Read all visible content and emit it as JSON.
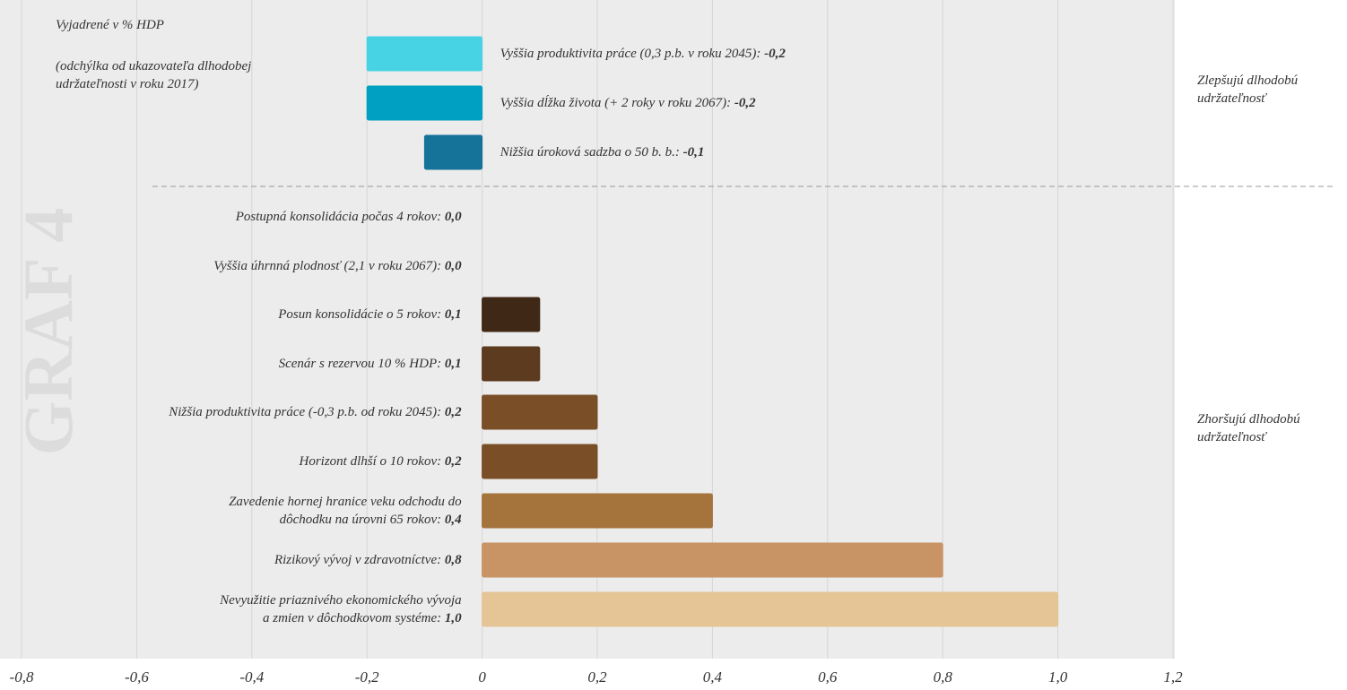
{
  "chart_data": {
    "type": "bar",
    "orientation": "horizontal",
    "title": "GRAF 4",
    "subtitle": "Vyjadrené v % HDP",
    "note": "(odchýlka od ukazovateľa dlhodobej\nudržateľnosti v roku 2017)",
    "annotations": [
      "Zlepšujú dlhodobú\nudržateľnosť",
      "Zhoršujú dlhodobú\nudržateľnosť"
    ],
    "categories": [
      "Vyššia produktivita práce (0,3 p.b. v roku 2045):",
      "Vyššia dĺžka života (+ 2 roky v roku 2067):",
      "Nižšia úroková sadzba o 50 b. b.:",
      "Postupná konsolidácia počas 4 rokov:",
      "Vyššia úhrnná plodnosť (2,1 v roku 2067):",
      "Posun konsolidácie o 5 rokov:",
      "Scenár s rezervou 10 % HDP:",
      "Nižšia produktivita práce (-0,3 p.b. od roku 2045):",
      "Horizont dlhší o 10 rokov:",
      "Zavedenie hornej hranice veku odchodu do\ndôchodku na úrovni 65 rokov:",
      "Rizikový vývoj v zdravotníctve:",
      "Nevyužitie priaznivého ekonomického vývoja\na zmien v dôchodkovom systéme:"
    ],
    "values": [
      -0.2,
      -0.2,
      -0.1,
      0,
      0,
      0.1,
      0.1,
      0.2,
      0.2,
      0.4,
      0.8,
      1.0
    ],
    "value_labels": [
      "-0,2",
      "-0,2",
      "-0,1",
      "0,0",
      "0,0",
      "0,1",
      "0,1",
      "0,2",
      "0,2",
      "0,4",
      "0,8",
      "1,0"
    ],
    "colors": [
      "#48d3e5",
      "#00a0c2",
      "#15739a",
      "#3f2816",
      "#3f2816",
      "#3f2816",
      "#5c3b1f",
      "#7a4f28",
      "#7a4f28",
      "#a5733c",
      "#c89466",
      "#e5c595"
    ],
    "xlim": [
      -0.8,
      1.2
    ],
    "xticks": [
      {
        "value": -0.8,
        "label": "-0,8"
      },
      {
        "value": -0.6,
        "label": "-0,6"
      },
      {
        "value": -0.4,
        "label": "-0,4"
      },
      {
        "value": -0.2,
        "label": "-0,2"
      },
      0,
      {
        "value": 0.2,
        "label": "0,2"
      },
      {
        "value": 0.4,
        "label": "0,4"
      },
      {
        "value": 0.6,
        "label": "0,6"
      },
      {
        "value": 0.8,
        "label": "0,8"
      },
      {
        "value": 1.0,
        "label": "1,0"
      },
      {
        "value": 1.2,
        "label": "1,2"
      }
    ],
    "grid": true
  }
}
